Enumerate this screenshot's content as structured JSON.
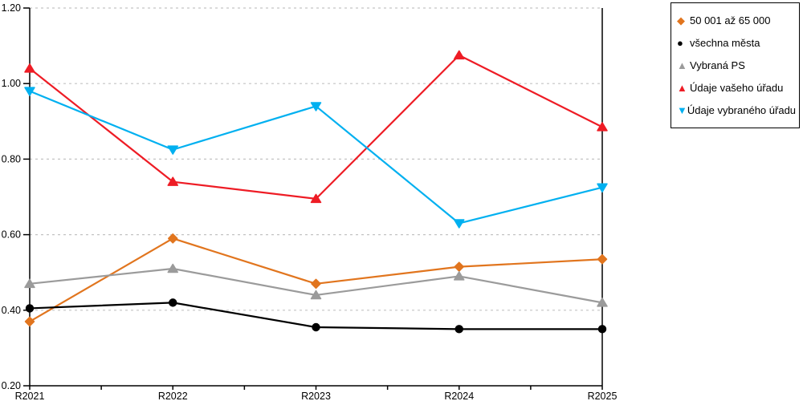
{
  "chart_data": {
    "type": "line",
    "title": "",
    "xlabel": "",
    "ylabel": "",
    "categories": [
      "R2021",
      "R2022",
      "R2023",
      "R2024",
      "R2025"
    ],
    "ylim": [
      0.2,
      1.2
    ],
    "ytick_values": [
      0.2,
      0.4,
      0.6,
      0.8,
      1.0,
      1.2
    ],
    "ytick_labels": [
      "0.20",
      "0.40",
      "0.60",
      "0.80",
      "1.00",
      "1.20"
    ],
    "grid": "horizontal-dashed",
    "gridline_color": "#c3c3c3",
    "axis_color": "#000000",
    "legend_position": "top-right",
    "series": [
      {
        "name": "50 001 až 65 000",
        "marker": "diamond",
        "glyph": "◆",
        "color": "#e1751e",
        "values": [
          0.37,
          0.59,
          0.47,
          0.515,
          0.535
        ]
      },
      {
        "name": "všechna města",
        "marker": "circle",
        "glyph": "●",
        "color": "#000000",
        "values": [
          0.405,
          0.42,
          0.355,
          0.35,
          0.35
        ]
      },
      {
        "name": "Vybraná PS",
        "marker": "triangle-up",
        "glyph": "▲",
        "color": "#9b9b9b",
        "values": [
          0.47,
          0.51,
          0.44,
          0.49,
          0.42
        ]
      },
      {
        "name": "Údaje vašeho úřadu",
        "marker": "triangle-up",
        "glyph": "▲",
        "color": "#ee1c25",
        "values": [
          1.04,
          0.74,
          0.695,
          1.075,
          0.885
        ]
      },
      {
        "name": "Údaje vybraného úřadu",
        "marker": "triangle-down",
        "glyph": "▼",
        "color": "#00b0f0",
        "values": [
          0.98,
          0.825,
          0.94,
          0.63,
          0.725
        ]
      }
    ]
  }
}
